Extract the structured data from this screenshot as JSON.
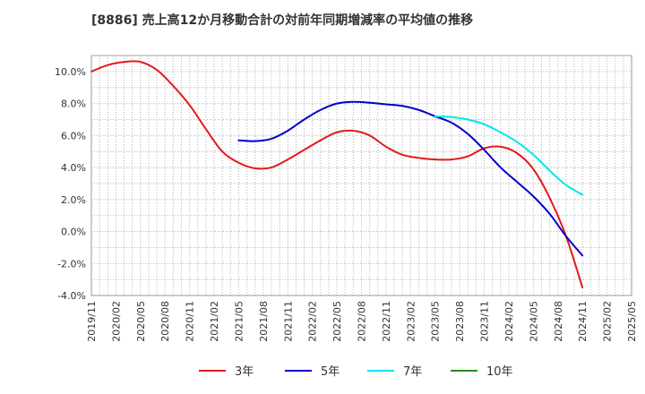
{
  "chart_data": {
    "type": "line",
    "title": "[8886]  売上高12か月移動合計の対前年同期増減率の平均値の推移",
    "xlabel": "",
    "ylabel": "",
    "ylim": [
      -4,
      11
    ],
    "y_ticks": [
      10,
      8,
      6,
      4,
      2,
      0,
      -2,
      -4
    ],
    "y_tick_labels": [
      "10.0%",
      "8.0%",
      "6.0%",
      "4.0%",
      "2.0%",
      "0.0%",
      "-2.0%",
      "-4.0%"
    ],
    "x_tick_labels": [
      "2019/11",
      "2020/02",
      "2020/05",
      "2020/08",
      "2020/11",
      "2021/02",
      "2021/05",
      "2021/08",
      "2021/11",
      "2022/02",
      "2022/05",
      "2022/08",
      "2022/11",
      "2023/02",
      "2023/05",
      "2023/08",
      "2023/11",
      "2024/02",
      "2024/05",
      "2024/08",
      "2024/11",
      "2025/02",
      "2025/05"
    ],
    "grid": true,
    "legend_position": "bottom",
    "series": [
      {
        "name": "3年",
        "color": "#e31a1c",
        "x": [
          "2019/11",
          "2020/01",
          "2020/03",
          "2020/05",
          "2020/07",
          "2020/09",
          "2020/11",
          "2021/01",
          "2021/03",
          "2021/05",
          "2021/07",
          "2021/09",
          "2021/11",
          "2022/01",
          "2022/03",
          "2022/05",
          "2022/07",
          "2022/09",
          "2022/11",
          "2023/01",
          "2023/03",
          "2023/05",
          "2023/07",
          "2023/09",
          "2023/11",
          "2024/01",
          "2024/03",
          "2024/05",
          "2024/07",
          "2024/09",
          "2024/11"
        ],
        "values": [
          10.0,
          10.4,
          10.6,
          10.6,
          10.1,
          9.1,
          7.9,
          6.4,
          5.0,
          4.3,
          3.95,
          4.0,
          4.5,
          5.1,
          5.7,
          6.2,
          6.3,
          6.0,
          5.3,
          4.8,
          4.6,
          4.5,
          4.5,
          4.7,
          5.2,
          5.3,
          4.9,
          3.9,
          2.1,
          -0.3,
          -3.5
        ]
      },
      {
        "name": "5年",
        "color": "#0000cc",
        "x": [
          "2021/05",
          "2021/07",
          "2021/09",
          "2021/11",
          "2022/01",
          "2022/03",
          "2022/05",
          "2022/07",
          "2022/09",
          "2022/11",
          "2023/01",
          "2023/03",
          "2023/05",
          "2023/07",
          "2023/09",
          "2023/11",
          "2024/01",
          "2024/03",
          "2024/05",
          "2024/07",
          "2024/09",
          "2024/11"
        ],
        "values": [
          5.7,
          5.65,
          5.8,
          6.3,
          7.0,
          7.6,
          8.0,
          8.1,
          8.05,
          7.95,
          7.85,
          7.6,
          7.2,
          6.8,
          6.1,
          5.1,
          4.0,
          3.1,
          2.2,
          1.1,
          -0.3,
          -1.5
        ]
      },
      {
        "name": "7年",
        "color": "#00e5ee",
        "x": [
          "2023/05",
          "2023/07",
          "2023/09",
          "2023/11",
          "2024/01",
          "2024/03",
          "2024/05",
          "2024/07",
          "2024/09",
          "2024/11"
        ],
        "values": [
          7.2,
          7.15,
          7.0,
          6.7,
          6.2,
          5.6,
          4.8,
          3.8,
          2.9,
          2.3
        ]
      },
      {
        "name": "10年",
        "color": "#228b22",
        "x": [],
        "values": []
      }
    ]
  }
}
